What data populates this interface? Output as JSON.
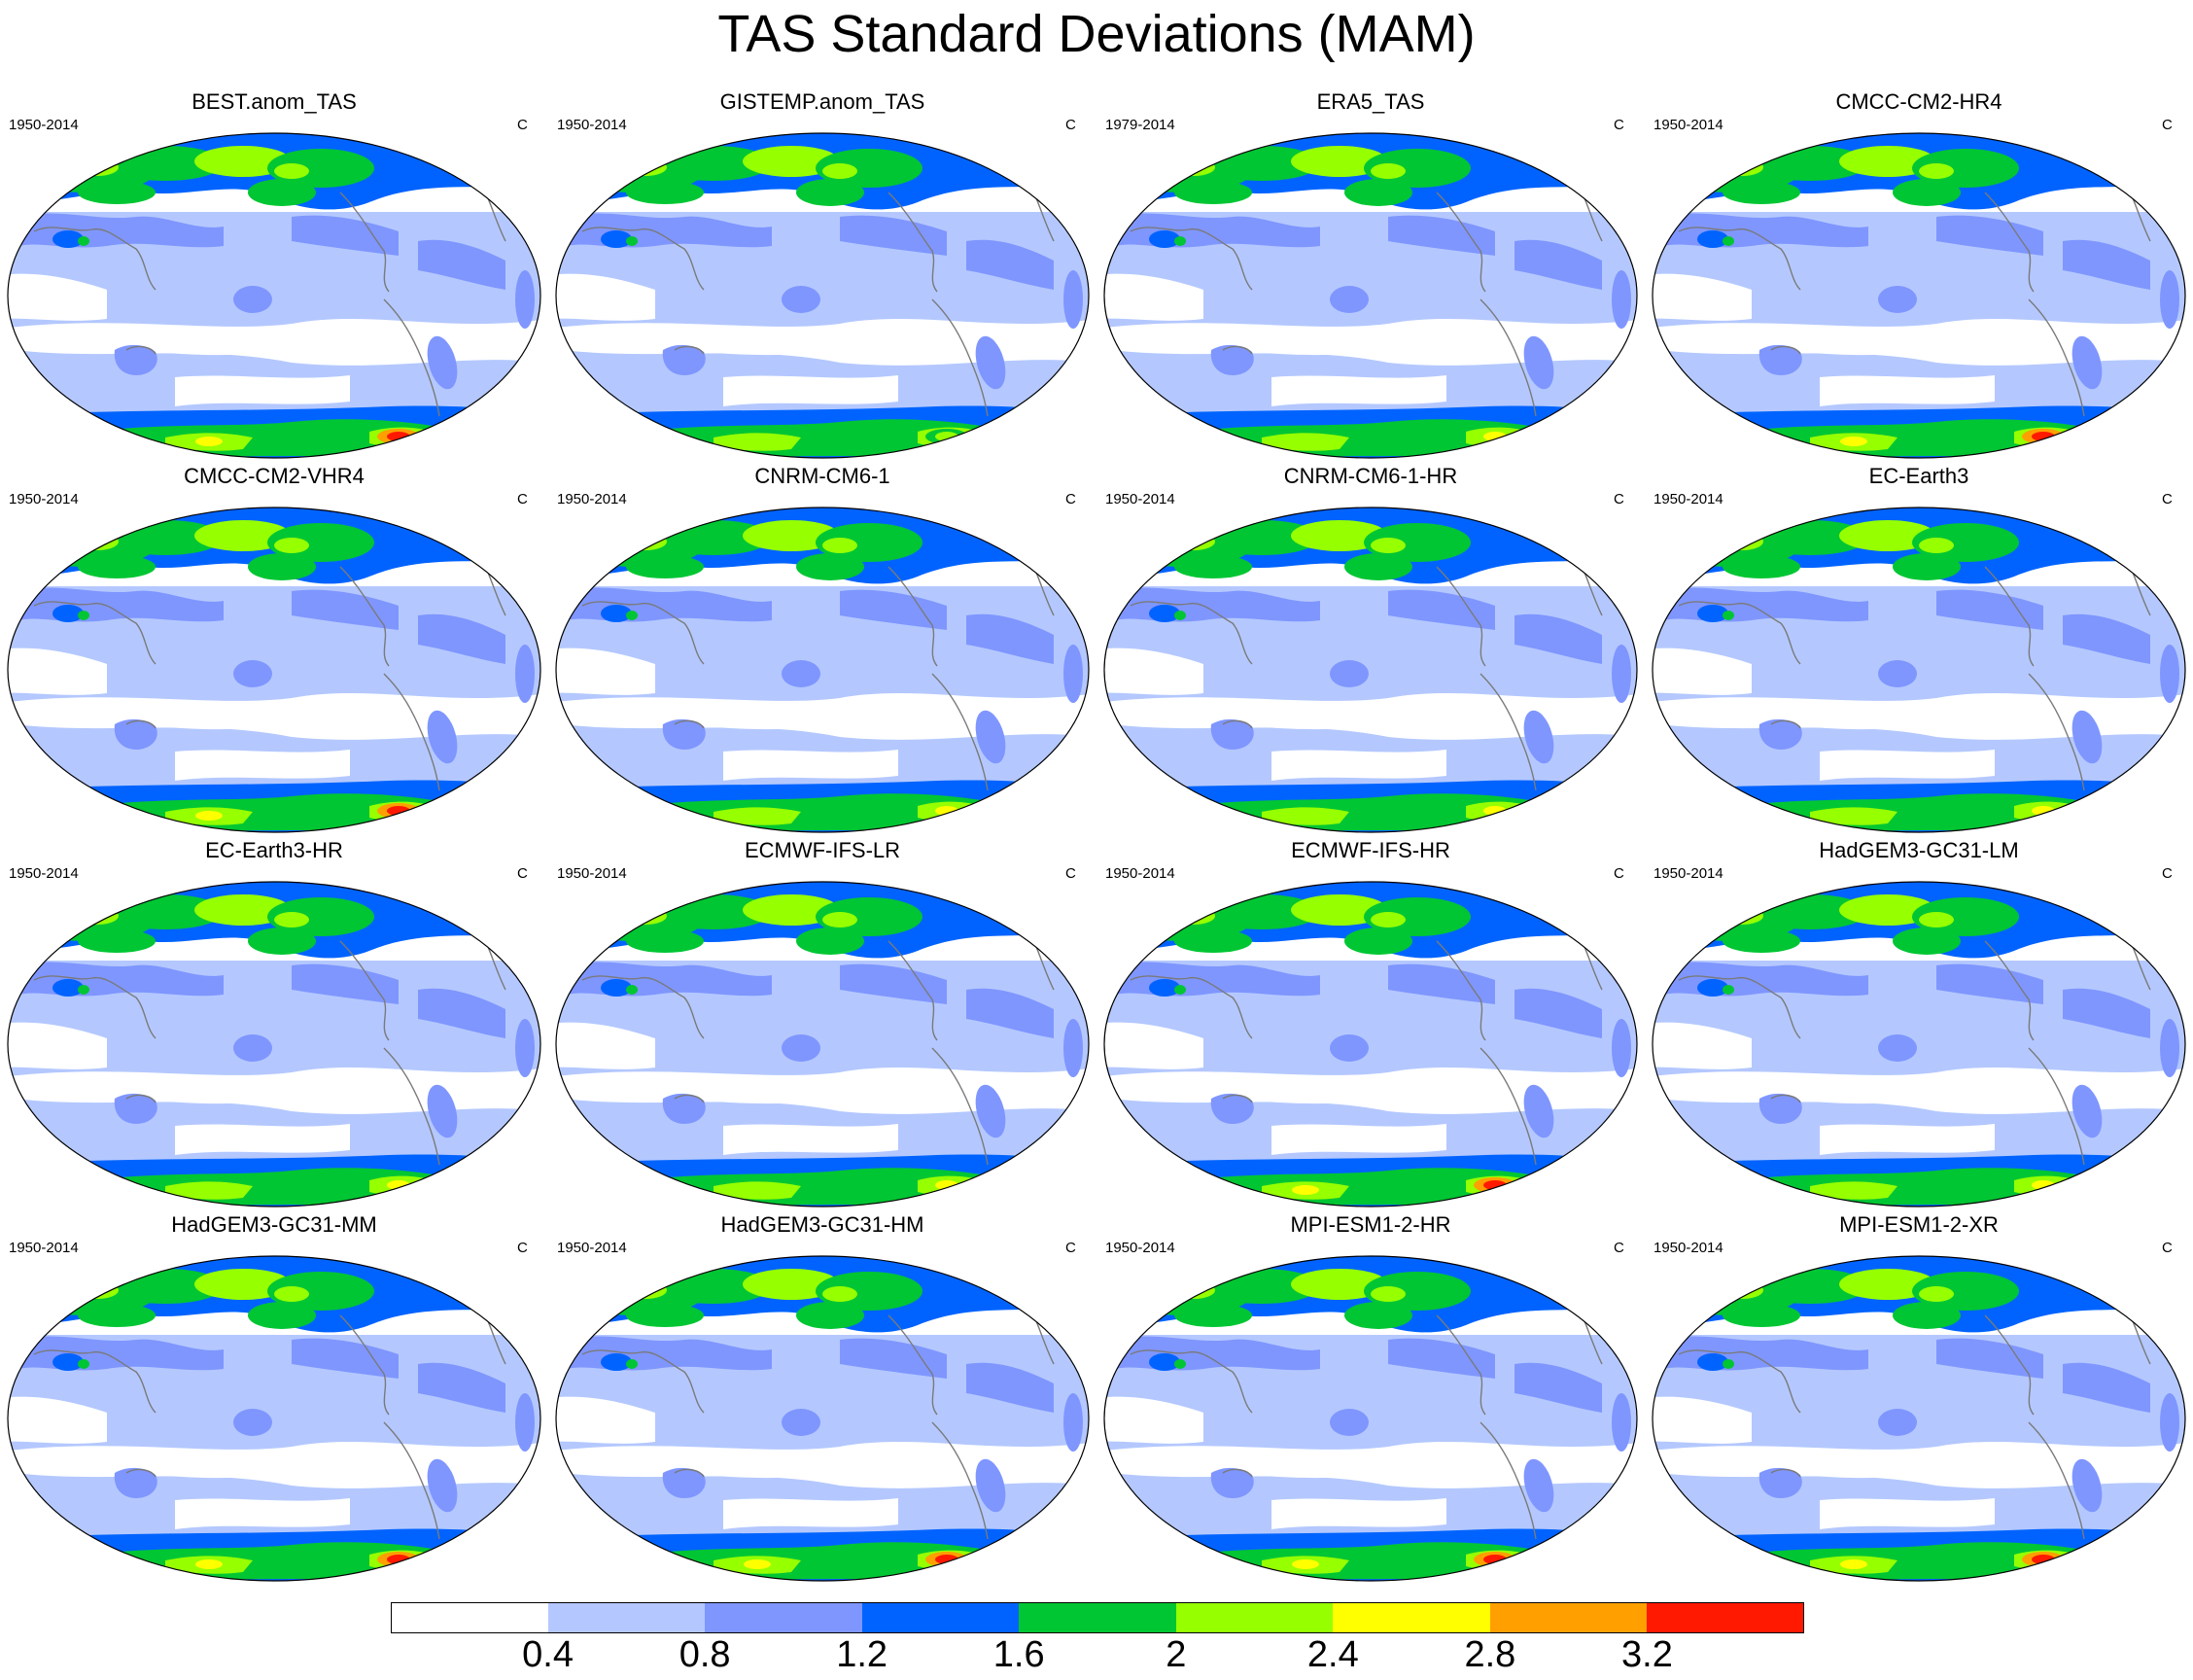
{
  "title": "TAS Standard Deviations (MAM)",
  "panels": [
    {
      "name": "BEST.anom_TAS",
      "period": "1950-2014",
      "unit": "C",
      "antarctic_peak": 3.2
    },
    {
      "name": "GISTEMP.anom_TAS",
      "period": "1950-2014",
      "unit": "C",
      "antarctic_peak": 2.0
    },
    {
      "name": "ERA5_TAS",
      "period": "1979-2014",
      "unit": "C",
      "antarctic_peak": 2.8
    },
    {
      "name": "CMCC-CM2-HR4",
      "period": "1950-2014",
      "unit": "C",
      "antarctic_peak": 3.2
    },
    {
      "name": "CMCC-CM2-VHR4",
      "period": "1950-2014",
      "unit": "C",
      "antarctic_peak": 3.2
    },
    {
      "name": "CNRM-CM6-1",
      "period": "1950-2014",
      "unit": "C",
      "antarctic_peak": 2.8
    },
    {
      "name": "CNRM-CM6-1-HR",
      "period": "1950-2014",
      "unit": "C",
      "antarctic_peak": 2.8
    },
    {
      "name": "EC-Earth3",
      "period": "1950-2014",
      "unit": "C",
      "antarctic_peak": 2.8
    },
    {
      "name": "EC-Earth3-HR",
      "period": "1950-2014",
      "unit": "C",
      "antarctic_peak": 2.8
    },
    {
      "name": "ECMWF-IFS-LR",
      "period": "1950-2014",
      "unit": "C",
      "antarctic_peak": 2.8
    },
    {
      "name": "ECMWF-IFS-HR",
      "period": "1950-2014",
      "unit": "C",
      "antarctic_peak": 3.2
    },
    {
      "name": "HadGEM3-GC31-LM",
      "period": "1950-2014",
      "unit": "C",
      "antarctic_peak": 2.8
    },
    {
      "name": "HadGEM3-GC31-MM",
      "period": "1950-2014",
      "unit": "C",
      "antarctic_peak": 3.2
    },
    {
      "name": "HadGEM3-GC31-HM",
      "period": "1950-2014",
      "unit": "C",
      "antarctic_peak": 3.2
    },
    {
      "name": "MPI-ESM1-2-HR",
      "period": "1950-2014",
      "unit": "C",
      "antarctic_peak": 3.2
    },
    {
      "name": "MPI-ESM1-2-XR",
      "period": "1950-2014",
      "unit": "C",
      "antarctic_peak": 3.2
    }
  ],
  "colorbar": {
    "labels": [
      "0.4",
      "0.8",
      "1.2",
      "1.6",
      "2",
      "2.4",
      "2.8",
      "3.2"
    ],
    "colors": [
      "#ffffff",
      "#b4c8ff",
      "#7f96ff",
      "#0063ff",
      "#00c633",
      "#96ff00",
      "#ffff00",
      "#ffa000",
      "#ff1900"
    ]
  }
}
